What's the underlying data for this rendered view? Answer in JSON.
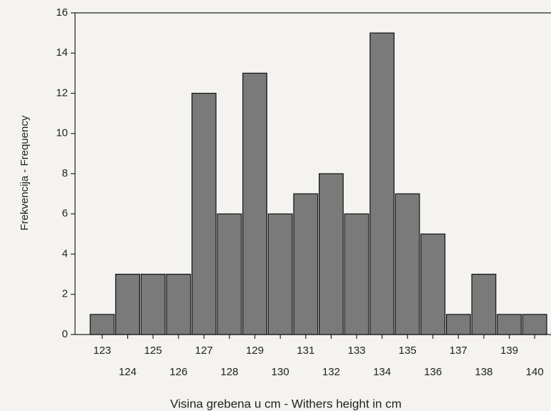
{
  "chart_data": {
    "type": "bar",
    "x_label": "Visina grebena u cm - Withers height in cm",
    "y_label": "Frekvencija - Frequency",
    "categories": [
      123,
      124,
      125,
      126,
      127,
      128,
      129,
      130,
      131,
      132,
      133,
      134,
      135,
      136,
      137,
      138,
      139,
      140
    ],
    "values": [
      1,
      3,
      3,
      3,
      12,
      6,
      13,
      6,
      7,
      8,
      6,
      15,
      7,
      5,
      1,
      3,
      1,
      1
    ],
    "color": "#7a7a7a",
    "ylim": [
      0,
      16
    ],
    "yticks": [
      0,
      2,
      4,
      6,
      8,
      10,
      12,
      14,
      16
    ]
  }
}
